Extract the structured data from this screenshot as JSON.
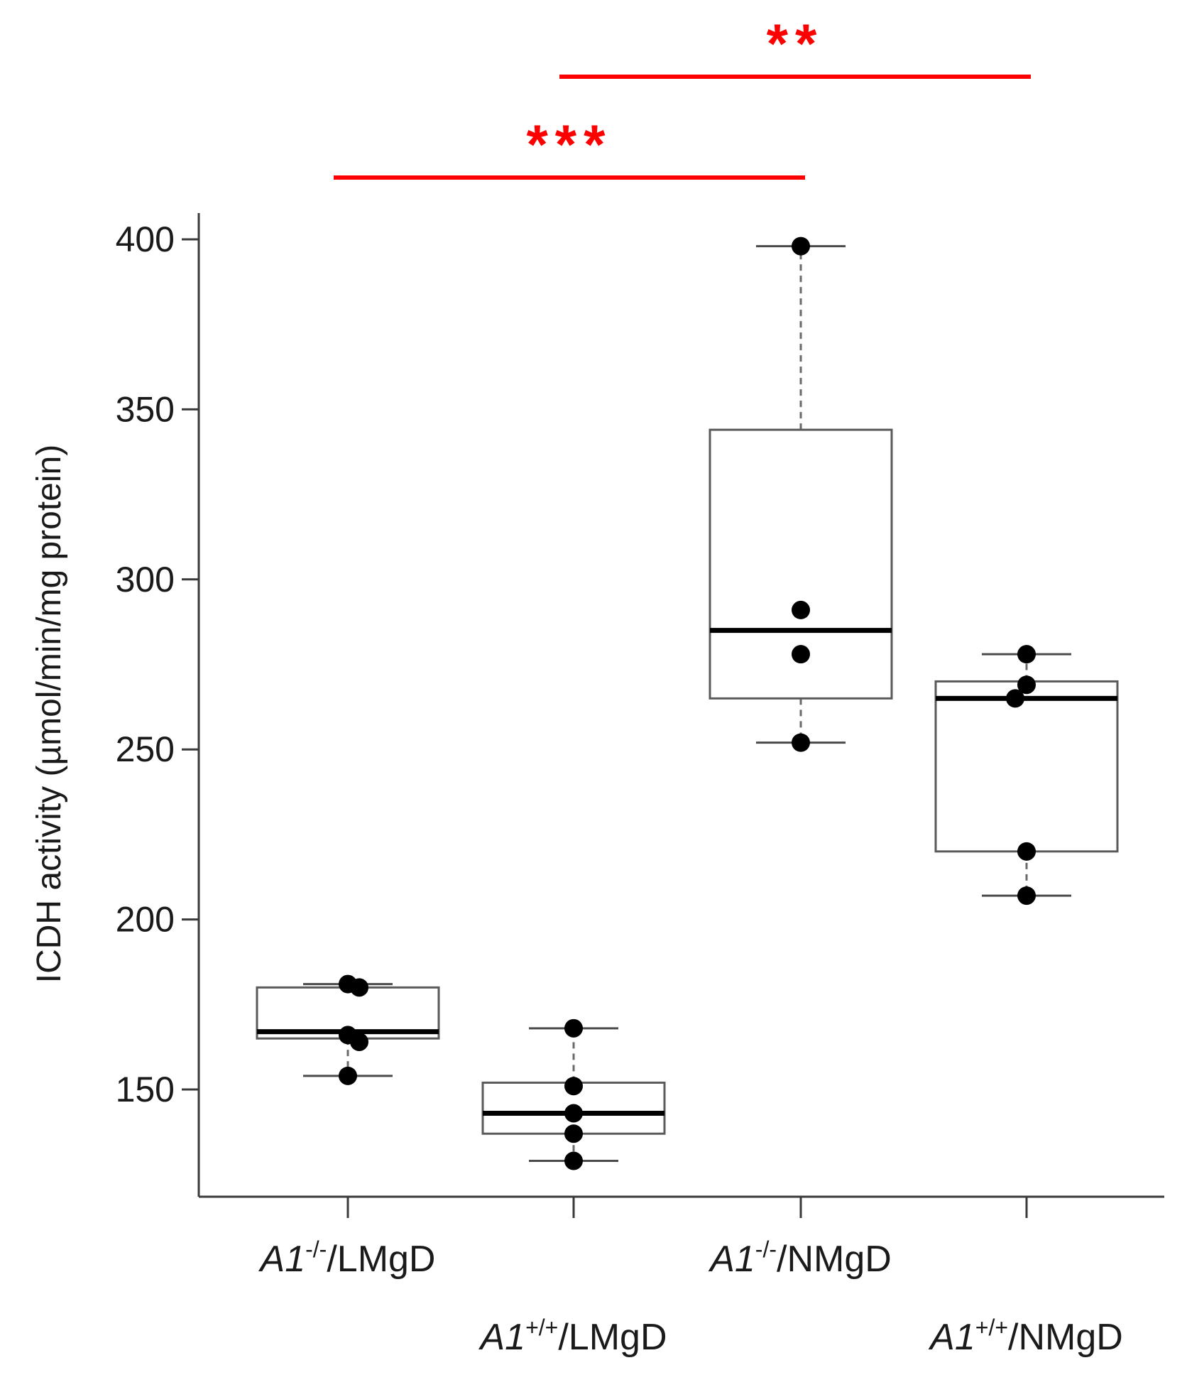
{
  "chart_data": {
    "type": "box",
    "ylabel": "ICDH activity (µmol/min/mg protein)",
    "ylim": [
      122,
      408
    ],
    "yticks": [
      150,
      200,
      250,
      300,
      350,
      400
    ],
    "ytick_labels": [
      "150",
      "200",
      "250",
      "300",
      "350",
      "400"
    ],
    "categories": [
      {
        "gene": "A1",
        "sup": "-/-",
        "rest": "/LMgD"
      },
      {
        "gene": "A1",
        "sup": "+/+",
        "rest": "/LMgD"
      },
      {
        "gene": "A1",
        "sup": "-/-",
        "rest": "/NMgD"
      },
      {
        "gene": "A1",
        "sup": "+/+",
        "rest": "/NMgD"
      }
    ],
    "boxes": [
      {
        "whisker_low": 154,
        "q1": 165,
        "median": 167,
        "q3": 180,
        "whisker_high": 181,
        "points": [
          181,
          180,
          166,
          164,
          154
        ]
      },
      {
        "whisker_low": 129,
        "q1": 137,
        "median": 143,
        "q3": 152,
        "whisker_high": 168,
        "points": [
          168,
          151,
          143,
          137,
          129
        ]
      },
      {
        "whisker_low": 252,
        "q1": 265,
        "median": 285,
        "q3": 344,
        "whisker_high": 398,
        "points": [
          398,
          291,
          278,
          252
        ]
      },
      {
        "whisker_low": 207,
        "q1": 220,
        "median": 265,
        "q3": 270,
        "whisker_high": 278,
        "points": [
          278,
          269,
          265,
          220,
          207
        ]
      }
    ],
    "significance": [
      {
        "from": 0,
        "to": 2,
        "label": "***"
      },
      {
        "from": 1,
        "to": 3,
        "label": "**"
      }
    ],
    "colors": {
      "box": "#5a5a5a",
      "median": "#000000",
      "point": "#000000",
      "significance": "#ff0000"
    }
  }
}
